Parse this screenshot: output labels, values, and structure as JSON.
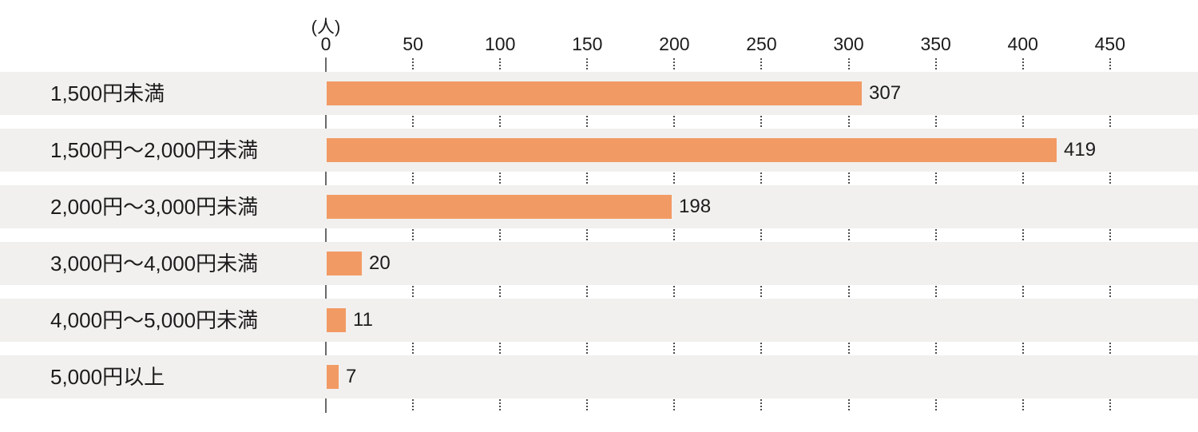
{
  "chart_data": {
    "type": "bar",
    "orientation": "horizontal",
    "title": "",
    "unit_label": "(人)",
    "categories": [
      "1,500円未満",
      "1,500円〜2,000円未満",
      "2,000円〜3,000円未満",
      "3,000円〜4,000円未満",
      "4,000円〜5,000円未満",
      "5,000円以上"
    ],
    "values": [
      307,
      419,
      198,
      20,
      11,
      7
    ],
    "x_ticks": [
      0,
      50,
      100,
      150,
      200,
      250,
      300,
      350,
      400,
      450
    ],
    "xlim": [
      0,
      500
    ],
    "xlabel": "(人)",
    "ylabel": "",
    "legend": null,
    "grid": "dotted-vertical-ticks-in-row-gaps",
    "colors": {
      "bar": "#f29a64",
      "row_stripe": "#f1f0ee",
      "axis_line": "#6a6a6a",
      "tick_dots": "#4d4d4d",
      "text": "#1c1c1c",
      "background": "#ffffff"
    }
  }
}
